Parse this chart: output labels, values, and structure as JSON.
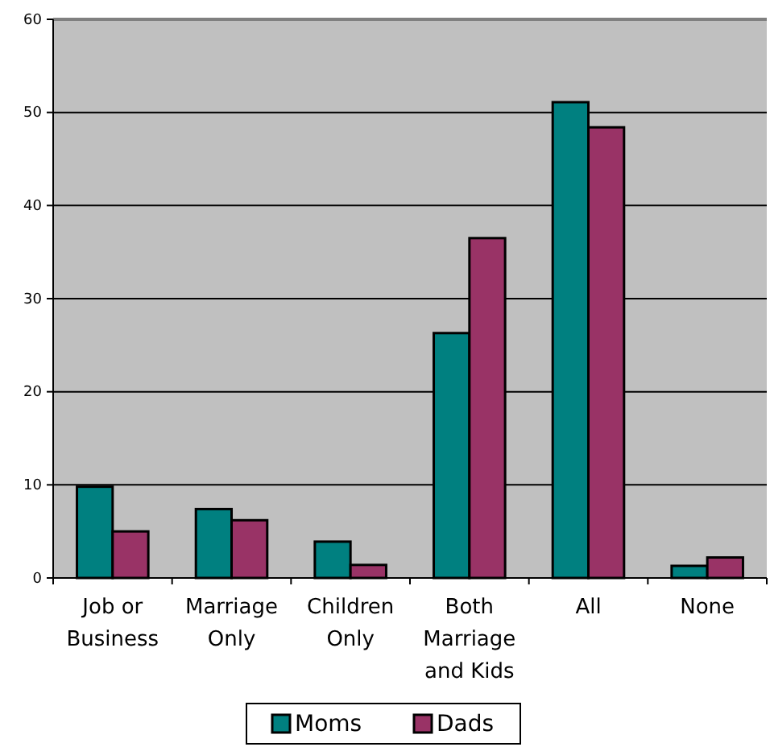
{
  "chart_data": {
    "type": "bar",
    "categories": [
      "Job or Business",
      "Marriage Only",
      "Children Only",
      "Both Marriage and Kids",
      "All",
      "None"
    ],
    "series": [
      {
        "name": "Moms",
        "color": "#008080",
        "values": [
          9.8,
          7.4,
          3.9,
          26.3,
          51.1,
          1.3
        ]
      },
      {
        "name": "Dads",
        "color": "#993366",
        "values": [
          5.0,
          6.2,
          1.4,
          36.5,
          48.4,
          2.2
        ]
      }
    ],
    "ylim": [
      0,
      60
    ],
    "yticks": [
      0,
      10,
      20,
      30,
      40,
      50,
      60
    ],
    "grid": "y",
    "legend": "bottom"
  }
}
